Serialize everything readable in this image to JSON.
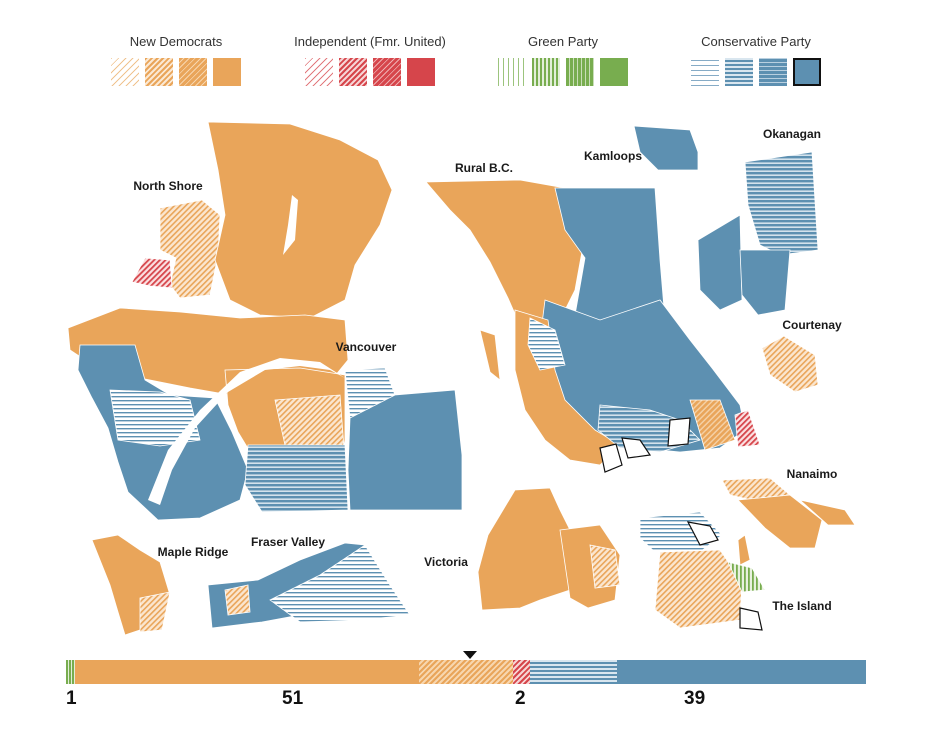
{
  "colors": {
    "ndp": "#e9a55a",
    "independent": "#d6454b",
    "green": "#78ad4f",
    "conservative": "#5d90b1"
  },
  "legend": [
    {
      "key": "ndp",
      "label": "New Democrats"
    },
    {
      "key": "independent",
      "label": "Independent (Fmr. United)"
    },
    {
      "key": "green",
      "label": "Green Party"
    },
    {
      "key": "conservative",
      "label": "Conservative Party"
    }
  ],
  "regions": {
    "north_shore": "North Shore",
    "rural_bc": "Rural B.C.",
    "kamloops": "Kamloops",
    "okanagan": "Okanagan",
    "vancouver": "Vancouver",
    "courtenay": "Courtenay",
    "nanaimo": "Nanaimo",
    "maple_ridge": "Maple Ridge",
    "fraser_valley": "Fraser Valley",
    "victoria": "Victoria",
    "the_island": "The Island"
  },
  "seat_counts": {
    "green": "1",
    "ndp": "51",
    "independent": "2",
    "conservative": "39"
  },
  "seat_bar": {
    "green": 1,
    "ndp_solid": 40,
    "ndp_lean": 11,
    "independent": 2,
    "conservative_lean": 10,
    "conservative_solid": 29,
    "majority_marker_seats": 47
  }
}
